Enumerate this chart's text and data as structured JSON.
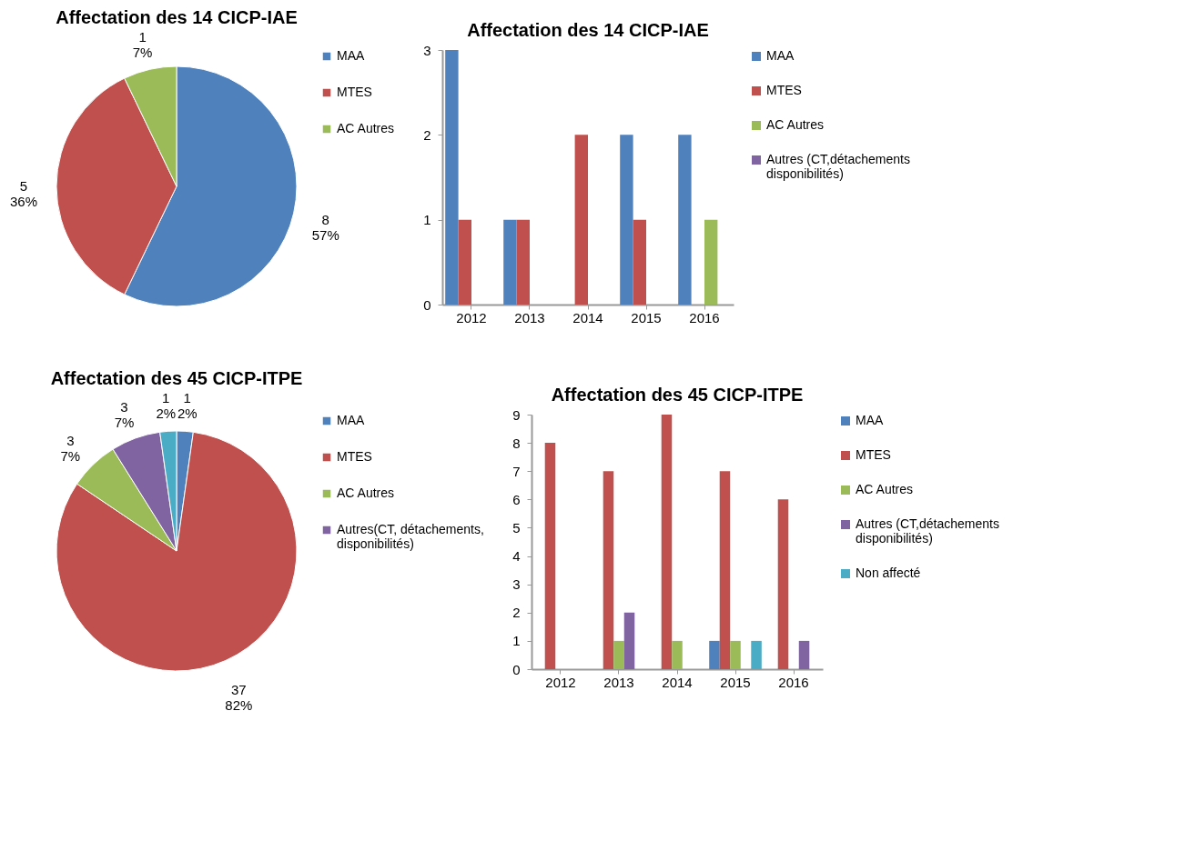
{
  "chart_data": [
    {
      "type": "pie",
      "title": "Affectation des 14 CICP-IAE",
      "categories": [
        "MAA",
        "MTES",
        "AC Autres"
      ],
      "values": [
        8,
        5,
        1
      ],
      "colors": [
        "#4f81bd",
        "#c0504d",
        "#9bbb59"
      ],
      "value_labels": [
        "8\n57%",
        "5\n36%",
        "1\n7%"
      ],
      "legend": "right"
    },
    {
      "type": "bar",
      "title": "Affectation des 14 CICP-IAE",
      "categories": [
        "2012",
        "2013",
        "2014",
        "2015",
        "2016"
      ],
      "series": [
        {
          "name": "MAA",
          "color": "#4f81bd",
          "values": [
            3,
            1,
            0,
            2,
            2
          ]
        },
        {
          "name": "MTES",
          "color": "#c0504d",
          "values": [
            1,
            1,
            2,
            1,
            0
          ]
        },
        {
          "name": "AC Autres",
          "color": "#9bbb59",
          "values": [
            0,
            0,
            0,
            0,
            1
          ]
        },
        {
          "name": "Autres (CT,détachements disponibilités)",
          "color": "#8064a2",
          "values": [
            0,
            0,
            0,
            0,
            0
          ]
        }
      ],
      "ylim": [
        0,
        3
      ],
      "yticks": [
        0,
        1,
        2,
        3
      ],
      "grid": false,
      "legend": "right"
    },
    {
      "type": "pie",
      "title": "Affectation des 45 CICP-ITPE",
      "categories": [
        "MAA",
        "MTES",
        "AC Autres",
        "Autres(CT, détachements, disponibilités)",
        null
      ],
      "values": [
        1,
        37,
        3,
        3,
        1
      ],
      "colors": [
        "#4f81bd",
        "#c0504d",
        "#9bbb59",
        "#8064a2",
        "#4bacc6"
      ],
      "value_labels": [
        "1\n2%",
        "37\n82%",
        "3\n7%",
        "3\n7%",
        "1\n2%"
      ],
      "legend": "right"
    },
    {
      "type": "bar",
      "title": "Affectation des 45 CICP-ITPE",
      "categories": [
        "2012",
        "2013",
        "2014",
        "2015",
        "2016"
      ],
      "series": [
        {
          "name": "MAA",
          "color": "#4f81bd",
          "values": [
            0,
            0,
            0,
            1,
            0
          ]
        },
        {
          "name": "MTES",
          "color": "#c0504d",
          "values": [
            8,
            7,
            9,
            7,
            6
          ]
        },
        {
          "name": "AC Autres",
          "color": "#9bbb59",
          "values": [
            0,
            1,
            1,
            1,
            0
          ]
        },
        {
          "name": "Autres (CT,détachements disponibilités)",
          "color": "#8064a2",
          "values": [
            0,
            2,
            0,
            0,
            1
          ]
        },
        {
          "name": "Non affecté",
          "color": "#4bacc6",
          "values": [
            0,
            0,
            0,
            1,
            0
          ]
        }
      ],
      "ylim": [
        0,
        9
      ],
      "yticks": [
        0,
        1,
        2,
        3,
        4,
        5,
        6,
        7,
        8,
        9
      ],
      "grid": false,
      "legend": "right"
    }
  ]
}
